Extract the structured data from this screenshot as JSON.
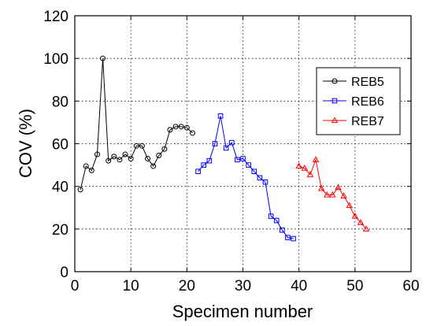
{
  "chart_data": {
    "type": "line",
    "title": "",
    "xlabel": "Specimen number",
    "ylabel": "COV (%)",
    "xlim": [
      0,
      60
    ],
    "ylim": [
      0,
      120
    ],
    "xticks": [
      0,
      10,
      20,
      30,
      40,
      50,
      60
    ],
    "yticks": [
      0,
      20,
      40,
      60,
      80,
      100,
      120
    ],
    "grid": true,
    "legend_position": "top-right",
    "series": [
      {
        "name": "REB5",
        "color": "#000000",
        "marker": "circle",
        "x": [
          1,
          2,
          3,
          4,
          5,
          6,
          7,
          8,
          9,
          10,
          11,
          12,
          13,
          14,
          15,
          16,
          17,
          18,
          19,
          20,
          21
        ],
        "y": [
          38.5,
          49.5,
          47.5,
          55,
          100,
          52,
          54,
          52.5,
          55,
          53,
          59,
          59,
          53,
          49.5,
          54.5,
          57.5,
          66.5,
          68,
          68,
          67.5,
          65
        ]
      },
      {
        "name": "REB6",
        "color": "#0000ff",
        "marker": "square",
        "x": [
          22,
          23,
          24,
          25,
          26,
          27,
          28,
          29,
          30,
          31,
          32,
          33,
          34,
          35,
          36,
          37,
          38,
          39
        ],
        "y": [
          47,
          50,
          52,
          60,
          73,
          58,
          60.5,
          52.5,
          53,
          50,
          47,
          44,
          42,
          26,
          24,
          19.5,
          16,
          15.5
        ]
      },
      {
        "name": "REB7",
        "color": "#ff0000",
        "marker": "triangle",
        "x": [
          40,
          41,
          42,
          43,
          44,
          45,
          46,
          47,
          48,
          49,
          50,
          51,
          52
        ],
        "y": [
          49.5,
          48.5,
          45.5,
          52.5,
          39,
          36,
          36,
          39.5,
          35.5,
          31,
          26,
          23,
          20
        ]
      }
    ]
  }
}
